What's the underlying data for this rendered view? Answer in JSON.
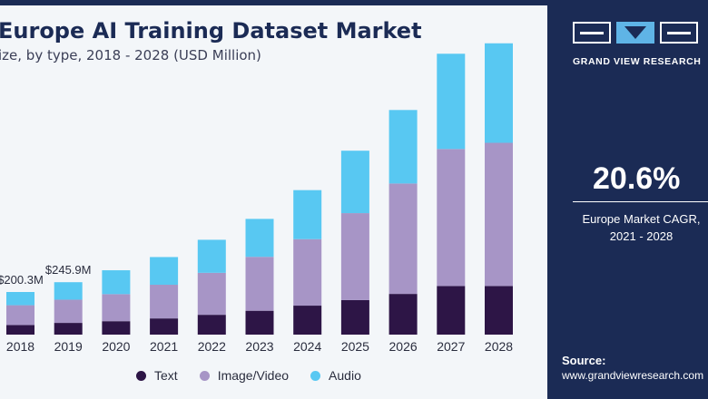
{
  "header": {
    "title": "Europe AI Training Dataset Market",
    "subtitle": "ize, by type, 2018 - 2028 (USD Million)"
  },
  "chart_data": {
    "type": "bar",
    "stacked": true,
    "categories": [
      "2018",
      "2019",
      "2020",
      "2021",
      "2022",
      "2023",
      "2024",
      "2025",
      "2026",
      "2027",
      "2028"
    ],
    "series": [
      {
        "name": "Text",
        "color": "#2d1546",
        "values": [
          45,
          55,
          63,
          76,
          93,
          112,
          136,
          162,
          191,
          228,
          228
        ]
      },
      {
        "name": "Image/Video",
        "color": "#a795c6",
        "values": [
          93,
          109,
          127,
          158,
          197,
          253,
          312,
          408,
          518,
          643,
          672
        ]
      },
      {
        "name": "Audio",
        "color": "#58c8f2",
        "values": [
          62,
          82,
          112,
          130,
          155,
          178,
          230,
          293,
          345,
          447,
          467
        ]
      }
    ],
    "data_labels": [
      {
        "category": "2018",
        "text": "$200.3M"
      },
      {
        "category": "2019",
        "text": "$245.9M"
      }
    ],
    "ylim": [
      0,
      1400
    ],
    "grid": false,
    "legend": "bottom"
  },
  "legend": {
    "items": [
      {
        "label": "Text",
        "color": "#2d1546"
      },
      {
        "label": "Image/Video",
        "color": "#a795c6"
      },
      {
        "label": "Audio",
        "color": "#58c8f2"
      }
    ]
  },
  "panel": {
    "brand": "GRAND VIEW RESEARCH",
    "cagr_value": "20.6%",
    "cagr_label_1": "Europe Market CAGR,",
    "cagr_label_2": "2021 - 2028",
    "source_label": "Source:",
    "source_url": "www.grandviewresearch.com"
  }
}
